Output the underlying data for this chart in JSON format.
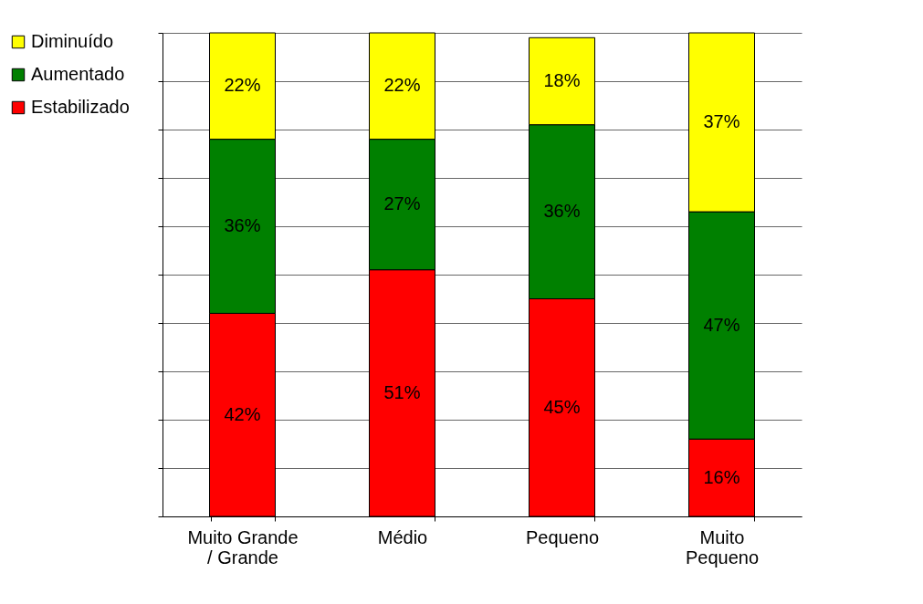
{
  "chart_data": {
    "type": "bar",
    "stacked": true,
    "categories": [
      "Muito Grande / Grande",
      "Médio",
      "Pequeno",
      "Muito Pequeno"
    ],
    "series": [
      {
        "name": "Estabilizado",
        "color": "#ff0000",
        "values": [
          42,
          51,
          45,
          16
        ],
        "value_labels": [
          "42%",
          "51%",
          "45%",
          "16%"
        ]
      },
      {
        "name": "Aumentado",
        "color": "#008000",
        "values": [
          36,
          27,
          36,
          47
        ],
        "value_labels": [
          "36%",
          "27%",
          "36%",
          "47%"
        ]
      },
      {
        "name": "Diminuído",
        "color": "#ffff00",
        "values": [
          22,
          22,
          18,
          37
        ],
        "value_labels": [
          "22%",
          "22%",
          "18%",
          "37%"
        ]
      }
    ],
    "ylim": [
      0,
      100
    ],
    "yticks": [
      {
        "value": 0,
        "label": null
      },
      {
        "value": 10,
        "label": null
      },
      {
        "value": 20,
        "label": null
      },
      {
        "value": 30,
        "label": null
      },
      {
        "value": 40,
        "label": null
      },
      {
        "value": 50,
        "label": null
      },
      {
        "value": 60,
        "label": null
      },
      {
        "value": 70,
        "label": null
      },
      {
        "value": 80,
        "label": null
      },
      {
        "value": 90,
        "label": null
      },
      {
        "value": 100,
        "label": null
      }
    ],
    "grid": "y",
    "legend": "top left",
    "tick_labels": "x"
  }
}
